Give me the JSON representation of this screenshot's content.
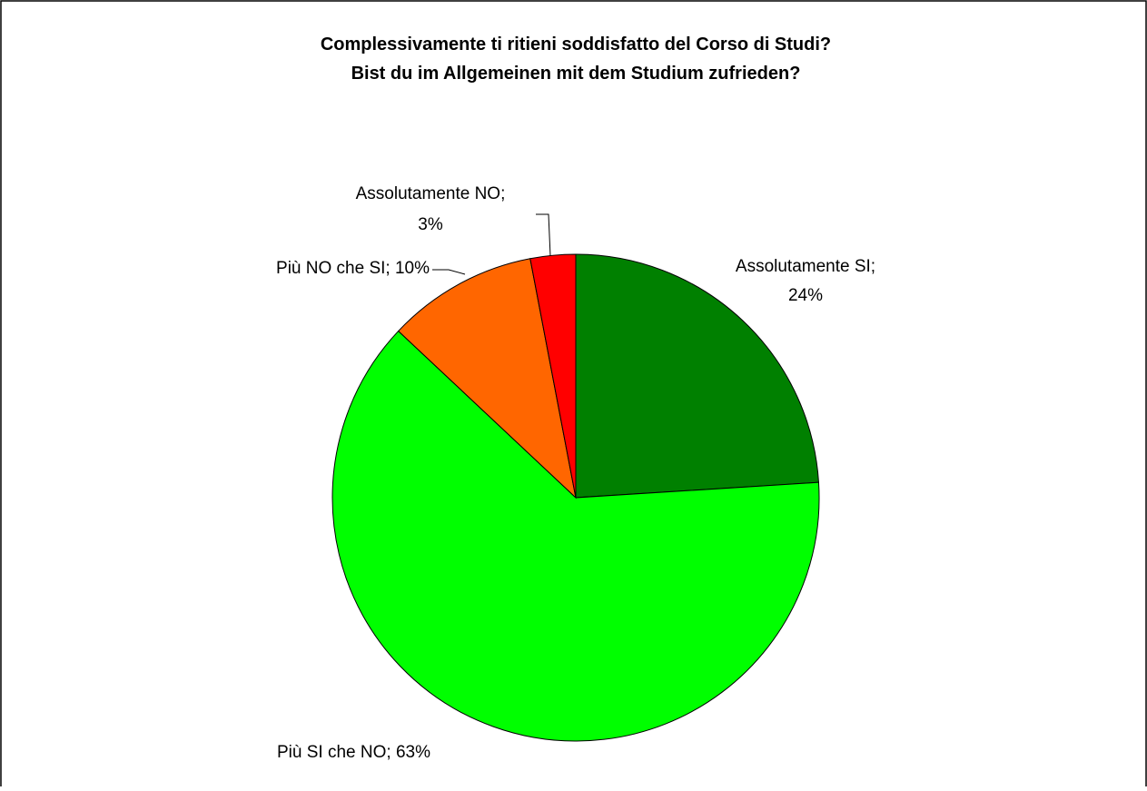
{
  "chart_data": {
    "type": "pie",
    "title": [
      "Complessivamente ti ritieni soddisfatto del Corso di Studi?",
      "Bist du im Allgemeinen mit dem Studium zufrieden?"
    ],
    "values": [
      24,
      63,
      10,
      3
    ],
    "value_labels": [
      [
        "Assolutamente SI;",
        "24%"
      ],
      [
        "Più SI che NO; 63%"
      ],
      [
        "Più NO che SI; 10%"
      ],
      [
        "Assolutamente NO;",
        "3%"
      ]
    ],
    "colors": [
      "#008000",
      "#00ff00",
      "#ff6600",
      "#ff0000"
    ]
  }
}
